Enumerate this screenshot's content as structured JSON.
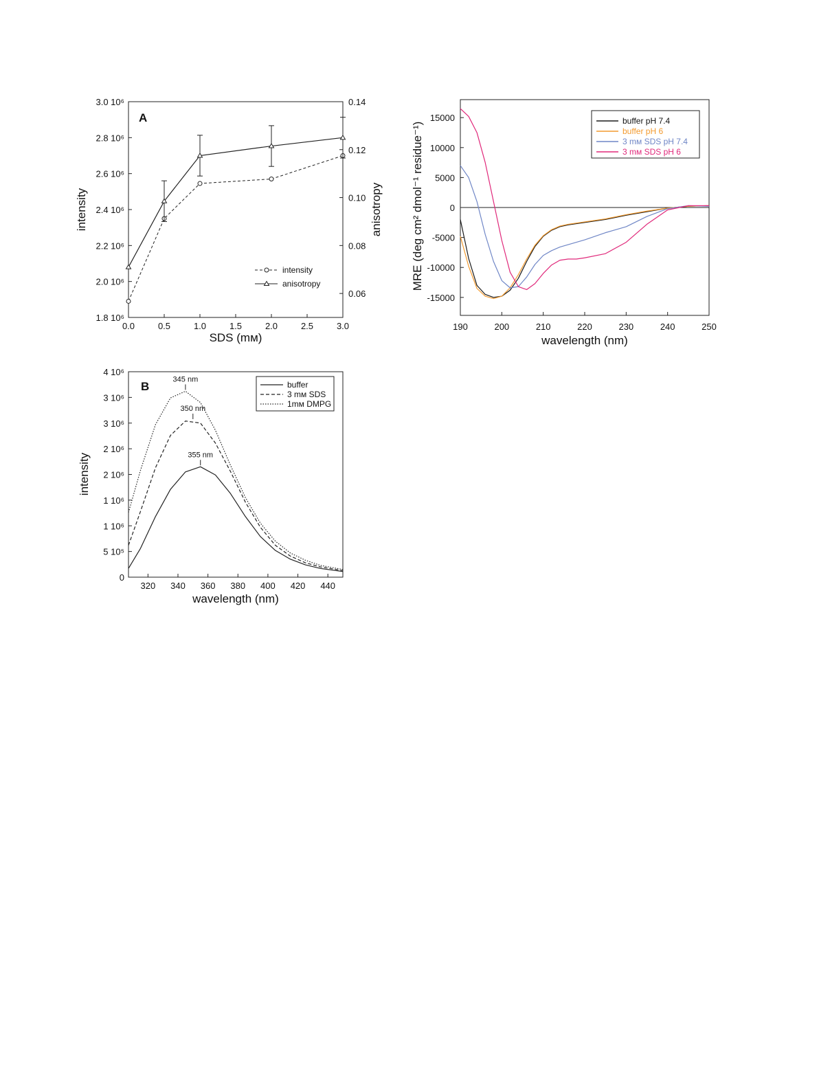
{
  "colors": {
    "buffer_pH74": "#1a1a1a",
    "buffer_pH6": "#f39a2e",
    "sds_pH74": "#6f86c6",
    "sds_pH6": "#e0287a",
    "axis": "#222222"
  },
  "chart_data": [
    {
      "id": "A",
      "type": "line",
      "panel_label": "A",
      "xlabel": "SDS (mм)",
      "ylabel": "intensity",
      "ylabel_right": "anisotropy",
      "xlim": [
        0,
        3
      ],
      "ylim": [
        1800000,
        3000000
      ],
      "ylim_right": [
        0.05,
        0.14
      ],
      "x_ticks": [
        "0.0",
        "0.5",
        "1.0",
        "1.5",
        "2.0",
        "2.5",
        "3.0"
      ],
      "y_ticks": [
        "1.8 10⁶",
        "2.0 10⁶",
        "2.2 10⁶",
        "2.4 10⁶",
        "2.6 10⁶",
        "2.8 10⁶",
        "3.0 10⁶"
      ],
      "y_ticks_right": [
        "0.06",
        "0.08",
        "0.10",
        "0.12",
        "0.14"
      ],
      "legend_position": "bottom-right",
      "series": [
        {
          "name": "intensity",
          "axis": "left",
          "style": "dashed",
          "marker": "circle",
          "x": [
            0,
            0.5,
            1,
            2,
            3
          ],
          "y": [
            1890000,
            2350000,
            2545000,
            2570000,
            2700000
          ]
        },
        {
          "name": "anisotropy",
          "axis": "right",
          "style": "solid",
          "marker": "triangle",
          "x": [
            0,
            0.5,
            1,
            2,
            3
          ],
          "y": [
            0.071,
            0.0985,
            0.1175,
            0.1215,
            0.125
          ],
          "err": [
            0,
            0.0085,
            0.0085,
            0.0085,
            0.0085
          ]
        }
      ]
    },
    {
      "id": "CD",
      "type": "line",
      "xlabel": "wavelength (nm)",
      "ylabel": "MRE (deg cm² dmol⁻¹ residue⁻¹)",
      "xlim": [
        190,
        250
      ],
      "ylim": [
        -18000,
        18000
      ],
      "x_ticks": [
        "190",
        "200",
        "210",
        "220",
        "230",
        "240",
        "250"
      ],
      "y_ticks": [
        "-15000",
        "-10000",
        "-5000",
        "0",
        "5000",
        "10000",
        "15000"
      ],
      "zero_line": true,
      "legend_position": "top-right",
      "series": [
        {
          "name": "buffer pH 7.4",
          "color": "#1a1a1a",
          "x": [
            190,
            192,
            194,
            196,
            198,
            200,
            202,
            204,
            206,
            208,
            210,
            212,
            214,
            216,
            218,
            220,
            225,
            230,
            235,
            240,
            245,
            250
          ],
          "y": [
            -2000,
            -8500,
            -13000,
            -14500,
            -15000,
            -14800,
            -13800,
            -11800,
            -9000,
            -6500,
            -4800,
            -3800,
            -3200,
            -2900,
            -2700,
            -2500,
            -2000,
            -1300,
            -700,
            -100,
            200,
            300
          ]
        },
        {
          "name": "buffer pH 6",
          "color": "#f39a2e",
          "x": [
            190,
            192,
            194,
            196,
            198,
            200,
            202,
            204,
            206,
            208,
            210,
            212,
            214,
            216,
            218,
            220,
            225,
            230,
            235,
            240,
            245,
            250
          ],
          "y": [
            -4800,
            -9800,
            -13500,
            -14800,
            -15200,
            -14800,
            -13400,
            -11200,
            -8600,
            -6300,
            -4700,
            -3700,
            -3100,
            -2800,
            -2600,
            -2400,
            -1900,
            -1200,
            -600,
            -100,
            200,
            300
          ]
        },
        {
          "name": "3 mм SDS pH 7.4",
          "color": "#6f86c6",
          "x": [
            190,
            192,
            194,
            196,
            198,
            200,
            202,
            204,
            206,
            208,
            210,
            212,
            214,
            216,
            218,
            220,
            225,
            230,
            235,
            240,
            245,
            250
          ],
          "y": [
            7000,
            5000,
            1000,
            -4500,
            -9000,
            -12200,
            -13400,
            -13200,
            -11600,
            -9500,
            -8000,
            -7200,
            -6600,
            -6200,
            -5800,
            -5400,
            -4200,
            -3200,
            -1500,
            -200,
            300,
            200
          ]
        },
        {
          "name": "3 mм SDS pH 6",
          "color": "#e0287a",
          "x": [
            190,
            192,
            194,
            196,
            198,
            200,
            202,
            204,
            206,
            208,
            210,
            212,
            214,
            216,
            218,
            220,
            225,
            230,
            235,
            240,
            245,
            250
          ],
          "y": [
            16500,
            15200,
            12500,
            7500,
            1000,
            -5500,
            -10800,
            -13200,
            -13700,
            -12700,
            -11000,
            -9600,
            -8800,
            -8600,
            -8600,
            -8400,
            -7700,
            -5800,
            -2800,
            -400,
            300,
            300
          ]
        }
      ]
    },
    {
      "id": "B",
      "type": "line",
      "panel_label": "B",
      "xlabel": "wavelength (nm)",
      "ylabel": "intensity",
      "xlim": [
        307,
        450
      ],
      "ylim": [
        0,
        4000000
      ],
      "x_ticks": [
        "320",
        "340",
        "360",
        "380",
        "400",
        "420",
        "440"
      ],
      "y_ticks": [
        "0",
        "5 10⁵",
        "1 10⁶",
        "1 10⁶",
        "2 10⁶",
        "2 10⁶",
        "3 10⁶",
        "3 10⁶",
        "4 10⁶"
      ],
      "legend_position": "top-right",
      "annotations": [
        {
          "text": "345 nm",
          "x": 345,
          "y": 3620000
        },
        {
          "text": "350 nm",
          "x": 350,
          "y": 3050000
        },
        {
          "text": "355 nm",
          "x": 355,
          "y": 2150000
        }
      ],
      "series": [
        {
          "name": "buffer",
          "style": "solid",
          "x": [
            307,
            315,
            325,
            335,
            345,
            355,
            365,
            375,
            385,
            395,
            405,
            415,
            425,
            435,
            450
          ],
          "y": [
            170000,
            560000,
            1180000,
            1710000,
            2050000,
            2150000,
            1990000,
            1630000,
            1180000,
            790000,
            520000,
            350000,
            240000,
            170000,
            110000
          ]
        },
        {
          "name": "3 mм SDS",
          "style": "dashed",
          "x": [
            307,
            315,
            325,
            335,
            345,
            355,
            365,
            375,
            385,
            395,
            405,
            415,
            425,
            435,
            450
          ],
          "y": [
            620000,
            1280000,
            2130000,
            2760000,
            3040000,
            3000000,
            2610000,
            2060000,
            1460000,
            970000,
            620000,
            410000,
            280000,
            200000,
            130000
          ]
        },
        {
          "name": "1mм DMPG",
          "style": "dotted",
          "x": [
            307,
            315,
            325,
            335,
            345,
            355,
            365,
            375,
            385,
            395,
            405,
            415,
            425,
            435,
            450
          ],
          "y": [
            1260000,
            2080000,
            2970000,
            3490000,
            3620000,
            3400000,
            2860000,
            2180000,
            1550000,
            1050000,
            700000,
            470000,
            330000,
            230000,
            150000
          ]
        }
      ]
    }
  ]
}
